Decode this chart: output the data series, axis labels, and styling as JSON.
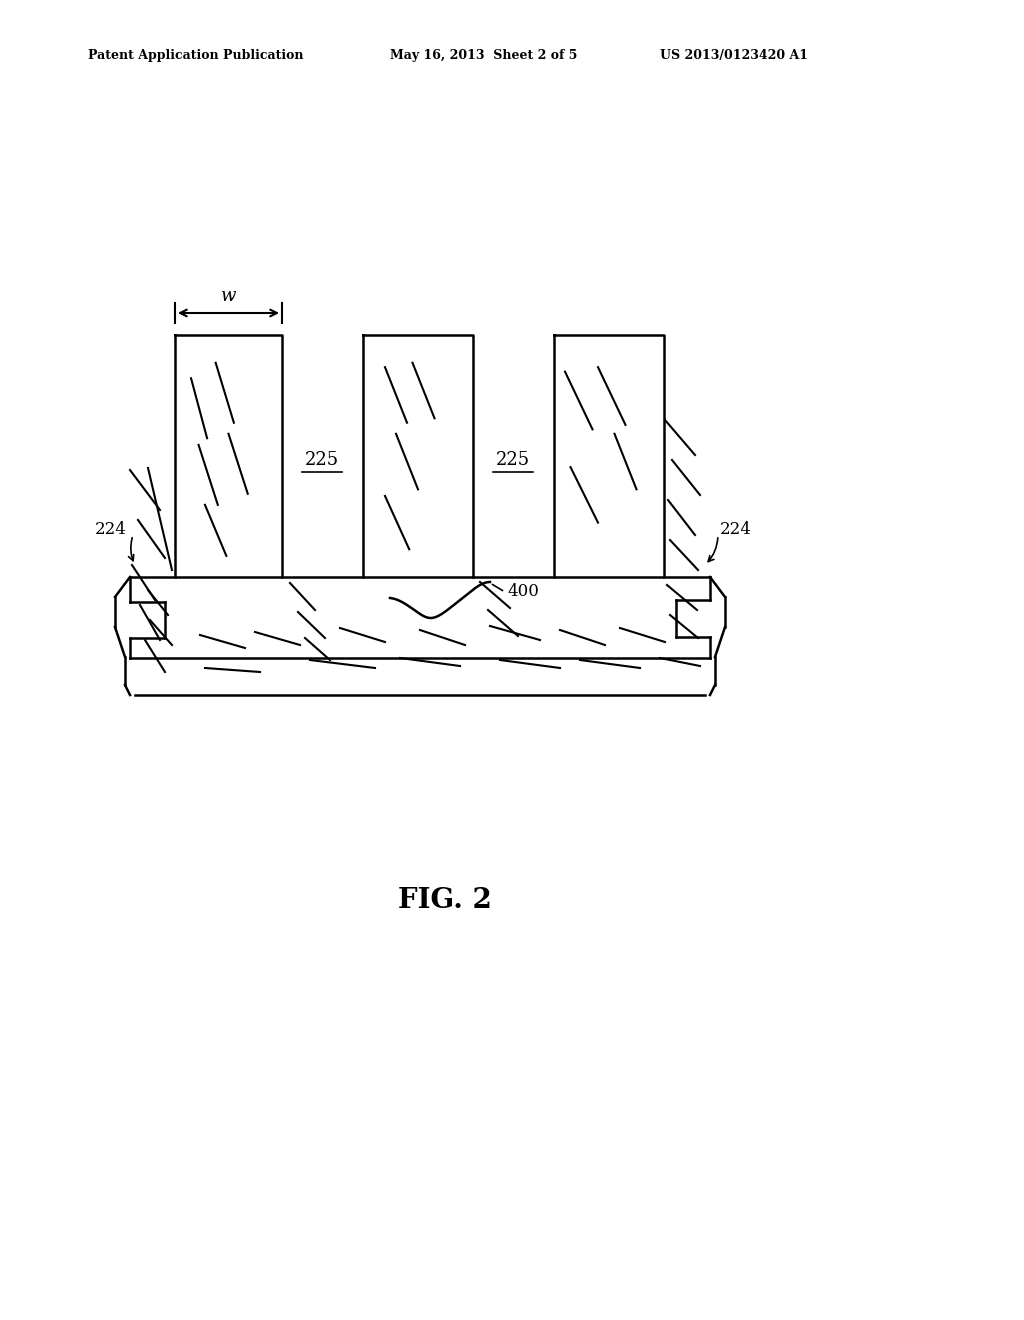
{
  "bg_color": "#ffffff",
  "header_left": "Patent Application Publication",
  "header_mid": "May 16, 2013  Sheet 2 of 5",
  "header_right": "US 2013/0123420 A1",
  "fig_label": "FIG. 2",
  "label_224_left": "224",
  "label_224_right": "224",
  "label_225_mid1": "225",
  "label_225_mid2": "225",
  "label_400": "400",
  "label_w": "w"
}
